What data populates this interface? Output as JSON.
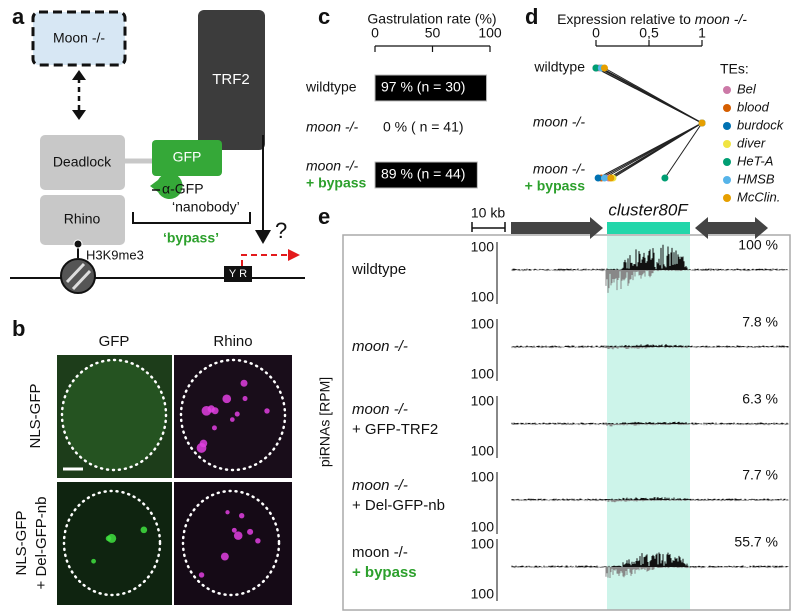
{
  "panel_labels": [
    "a",
    "b",
    "c",
    "d",
    "e"
  ],
  "panel_a": {
    "moon": "Moon -/-",
    "trf2": "TRF2",
    "deadlock": "Deadlock",
    "rhino": "Rhino",
    "gfp": "GFP",
    "nanobody": [
      "α-GFP",
      "‘nanobody’"
    ],
    "bypass": "‘bypass’",
    "mark": "H3K9me3",
    "question": "?",
    "residues": "Y R"
  },
  "panel_b": {
    "columns": [
      "GFP",
      "Rhino"
    ],
    "rows": [
      [
        "NLS-GFP"
      ],
      [
        "NLS-GFP",
        "+ Del-GFP-nb"
      ]
    ]
  },
  "panel_c": {
    "title": "Gastrulation rate (%)",
    "categories": [
      [
        "wildtype"
      ],
      [
        "moon -/-"
      ],
      [
        "moon -/-",
        "+ bypass"
      ]
    ],
    "values": [
      97,
      0,
      89
    ],
    "value_labels": [
      "97 % (n = 30)",
      "0 % ( n = 41)",
      "89 % (n = 44)"
    ],
    "xlim": [
      0,
      100
    ],
    "xticks": [
      0,
      50,
      100
    ],
    "color": "#000000"
  },
  "panel_d": {
    "title": [
      "Expression relative to",
      "moon -/-"
    ],
    "categories": [
      [
        "wildtype"
      ],
      [
        "moon -/-"
      ],
      [
        "moon -/-",
        "+ bypass"
      ]
    ],
    "xlim": [
      0,
      1
    ],
    "xticks": [
      0,
      {
        "value": 0.5,
        "label": "0,5"
      },
      1
    ],
    "legend_title": "TEs:",
    "series": [
      {
        "name": "Bel",
        "color": "#cc79a7",
        "values": [
          0.03,
          1,
          0.12
        ]
      },
      {
        "name": "blood",
        "color": "#d55e00",
        "values": [
          0.0,
          1,
          0.05
        ]
      },
      {
        "name": "burdock",
        "color": "#0072b2",
        "values": [
          0.0,
          1,
          0.02
        ]
      },
      {
        "name": "diver",
        "color": "#f0e442",
        "values": [
          0.05,
          1,
          0.16
        ]
      },
      {
        "name": "HeT-A",
        "color": "#009e73",
        "values": [
          0.0,
          1,
          0.65
        ]
      },
      {
        "name": "HMSB",
        "color": "#56b4e9",
        "values": [
          0.05,
          1,
          0.08
        ]
      },
      {
        "name": "McClin.",
        "color": "#e69f00",
        "values": [
          0.08,
          1,
          0.14
        ]
      }
    ]
  },
  "panel_e": {
    "scale_bar": "10 kb",
    "cluster": "cluster80F",
    "ylabel": "piRNAs [RPM]",
    "scale_labels": [
      "100",
      "100"
    ],
    "tracks": [
      {
        "label": [
          "wildtype"
        ],
        "percent": "100 %"
      },
      {
        "label": [
          "moon -/-"
        ],
        "percent": "7.8 %"
      },
      {
        "label": [
          "moon -/-",
          "+ GFP-TRF2"
        ],
        "percent": "6.3 %"
      },
      {
        "label": [
          "moon -/-",
          "+ Del-GFP-nb"
        ],
        "percent": "7.7 %"
      },
      {
        "label": [
          "moon -/-",
          "+ bypass"
        ],
        "percent": "55.7 %"
      }
    ]
  }
}
